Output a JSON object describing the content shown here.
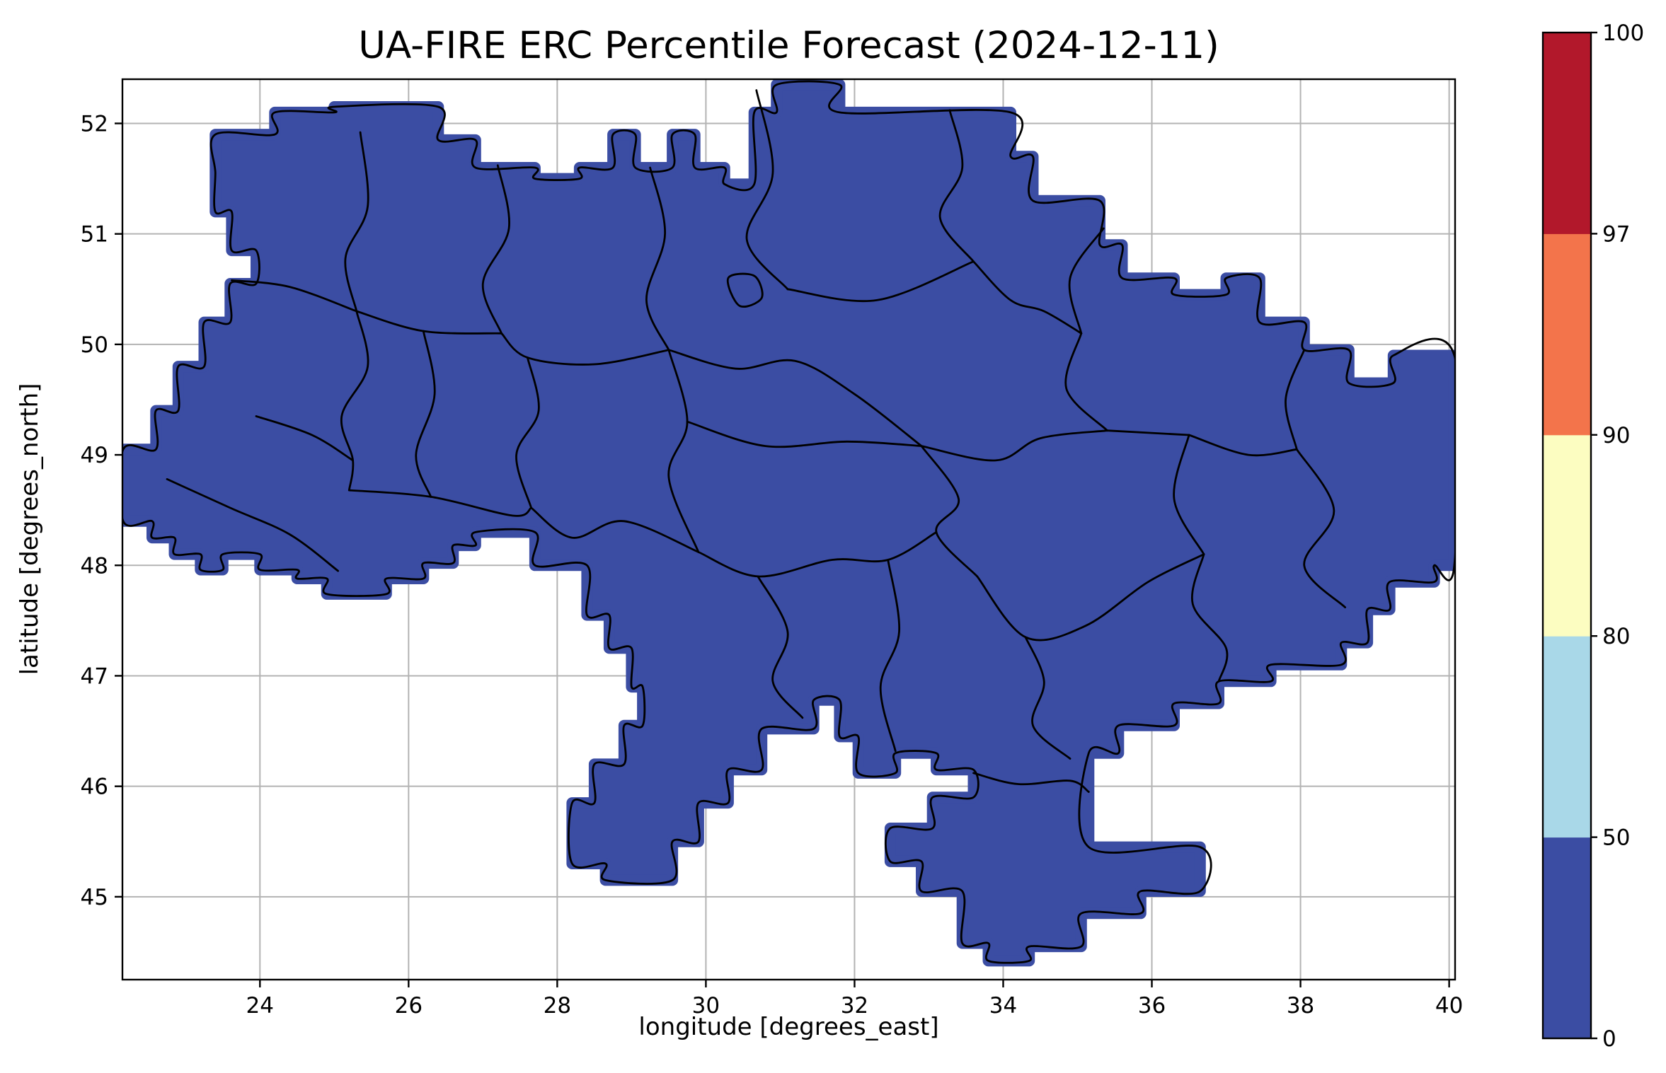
{
  "chart_data": {
    "type": "heatmap",
    "title": "UA-FIRE ERC Percentile Forecast (2024-12-11)",
    "xlabel": "longitude [degrees_east]",
    "ylabel": "latitude [degrees_north]",
    "region": "Ukraine",
    "xlim": [
      22.15,
      40.08
    ],
    "ylim": [
      44.25,
      52.4
    ],
    "xticks": [
      24,
      26,
      28,
      30,
      32,
      34,
      36,
      38,
      40
    ],
    "yticks": [
      45,
      46,
      47,
      48,
      49,
      50,
      51,
      52
    ],
    "grid": true,
    "grid_color": "#b3b3b3",
    "frame_color": "#000000",
    "boundary_color": "#000000",
    "fill_color": "#3B4DA3",
    "uniform_value_bin": [
      0,
      50
    ],
    "colorbar": {
      "levels": [
        0,
        50,
        80,
        90,
        97,
        100
      ],
      "labels": [
        "0",
        "50",
        "80",
        "90",
        "97",
        "100"
      ],
      "colors": [
        "#3B4DA3",
        "#A9D8E8",
        "#FCFDC1",
        "#F3744B",
        "#B2182B"
      ]
    },
    "mask_outline": [
      [
        23.4,
        51.55
      ],
      [
        23.4,
        51.9
      ],
      [
        24.2,
        51.9
      ],
      [
        24.2,
        52.1
      ],
      [
        25.0,
        52.1
      ],
      [
        25.0,
        52.15
      ],
      [
        26.4,
        52.15
      ],
      [
        26.4,
        51.85
      ],
      [
        26.9,
        51.85
      ],
      [
        26.9,
        51.6
      ],
      [
        27.7,
        51.6
      ],
      [
        27.7,
        51.5
      ],
      [
        28.3,
        51.5
      ],
      [
        28.3,
        51.6
      ],
      [
        28.75,
        51.6
      ],
      [
        28.75,
        51.9
      ],
      [
        29.05,
        51.9
      ],
      [
        29.05,
        51.6
      ],
      [
        29.55,
        51.6
      ],
      [
        29.55,
        51.9
      ],
      [
        29.85,
        51.9
      ],
      [
        29.85,
        51.6
      ],
      [
        30.25,
        51.6
      ],
      [
        30.25,
        51.45
      ],
      [
        30.65,
        51.45
      ],
      [
        30.65,
        52.1
      ],
      [
        30.95,
        52.1
      ],
      [
        30.95,
        52.35
      ],
      [
        31.8,
        52.35
      ],
      [
        31.8,
        52.1
      ],
      [
        34.1,
        52.1
      ],
      [
        34.1,
        51.7
      ],
      [
        34.4,
        51.7
      ],
      [
        34.4,
        51.3
      ],
      [
        35.3,
        51.3
      ],
      [
        35.3,
        50.9
      ],
      [
        35.6,
        50.9
      ],
      [
        35.6,
        50.6
      ],
      [
        36.3,
        50.6
      ],
      [
        36.3,
        50.45
      ],
      [
        37.0,
        50.45
      ],
      [
        37.0,
        50.6
      ],
      [
        37.45,
        50.6
      ],
      [
        37.45,
        50.2
      ],
      [
        38.05,
        50.2
      ],
      [
        38.05,
        49.95
      ],
      [
        38.65,
        49.95
      ],
      [
        38.65,
        49.65
      ],
      [
        39.25,
        49.65
      ],
      [
        39.25,
        49.9
      ],
      [
        40.07,
        49.9
      ],
      [
        40.07,
        48.0
      ],
      [
        39.8,
        48.0
      ],
      [
        39.8,
        47.85
      ],
      [
        39.2,
        47.85
      ],
      [
        39.2,
        47.6
      ],
      [
        38.9,
        47.6
      ],
      [
        38.9,
        47.3
      ],
      [
        38.55,
        47.3
      ],
      [
        38.55,
        47.1
      ],
      [
        37.6,
        47.1
      ],
      [
        37.6,
        46.95
      ],
      [
        36.9,
        46.95
      ],
      [
        36.9,
        46.75
      ],
      [
        36.3,
        46.75
      ],
      [
        36.3,
        46.55
      ],
      [
        35.55,
        46.55
      ],
      [
        35.55,
        46.3
      ],
      [
        35.15,
        46.3
      ],
      [
        35.15,
        45.45
      ],
      [
        36.65,
        45.45
      ],
      [
        36.65,
        45.05
      ],
      [
        35.85,
        45.05
      ],
      [
        35.85,
        44.85
      ],
      [
        35.05,
        44.85
      ],
      [
        35.05,
        44.55
      ],
      [
        34.35,
        44.55
      ],
      [
        34.35,
        44.42
      ],
      [
        33.8,
        44.42
      ],
      [
        33.8,
        44.58
      ],
      [
        33.45,
        44.58
      ],
      [
        33.45,
        45.05
      ],
      [
        32.9,
        45.05
      ],
      [
        32.9,
        45.32
      ],
      [
        32.48,
        45.32
      ],
      [
        32.48,
        45.62
      ],
      [
        33.05,
        45.62
      ],
      [
        33.05,
        45.9
      ],
      [
        33.6,
        45.9
      ],
      [
        33.6,
        46.15
      ],
      [
        33.1,
        46.15
      ],
      [
        33.1,
        46.3
      ],
      [
        32.55,
        46.3
      ],
      [
        32.55,
        46.12
      ],
      [
        32.05,
        46.12
      ],
      [
        32.05,
        46.45
      ],
      [
        31.8,
        46.45
      ],
      [
        31.8,
        46.78
      ],
      [
        31.45,
        46.78
      ],
      [
        31.45,
        46.52
      ],
      [
        30.75,
        46.52
      ],
      [
        30.75,
        46.15
      ],
      [
        30.3,
        46.15
      ],
      [
        30.3,
        45.85
      ],
      [
        29.9,
        45.85
      ],
      [
        29.9,
        45.5
      ],
      [
        29.55,
        45.5
      ],
      [
        29.55,
        45.15
      ],
      [
        28.65,
        45.15
      ],
      [
        28.65,
        45.3
      ],
      [
        28.2,
        45.3
      ],
      [
        28.2,
        45.85
      ],
      [
        28.5,
        45.85
      ],
      [
        28.5,
        46.2
      ],
      [
        28.9,
        46.2
      ],
      [
        28.9,
        46.55
      ],
      [
        29.15,
        46.55
      ],
      [
        29.15,
        46.9
      ],
      [
        29.0,
        46.9
      ],
      [
        29.0,
        47.25
      ],
      [
        28.7,
        47.25
      ],
      [
        28.7,
        47.55
      ],
      [
        28.4,
        47.55
      ],
      [
        28.4,
        48.0
      ],
      [
        27.7,
        48.0
      ],
      [
        27.7,
        48.3
      ],
      [
        26.9,
        48.3
      ],
      [
        26.9,
        48.18
      ],
      [
        26.6,
        48.18
      ],
      [
        26.6,
        48.02
      ],
      [
        26.2,
        48.02
      ],
      [
        26.2,
        47.88
      ],
      [
        25.7,
        47.88
      ],
      [
        25.7,
        47.74
      ],
      [
        24.9,
        47.74
      ],
      [
        24.9,
        47.88
      ],
      [
        24.5,
        47.88
      ],
      [
        24.5,
        47.96
      ],
      [
        24.0,
        47.96
      ],
      [
        24.0,
        48.1
      ],
      [
        23.5,
        48.1
      ],
      [
        23.5,
        47.96
      ],
      [
        23.2,
        47.96
      ],
      [
        23.2,
        48.1
      ],
      [
        22.85,
        48.1
      ],
      [
        22.85,
        48.25
      ],
      [
        22.55,
        48.25
      ],
      [
        22.55,
        48.4
      ],
      [
        22.16,
        48.4
      ],
      [
        22.16,
        49.05
      ],
      [
        22.6,
        49.05
      ],
      [
        22.6,
        49.4
      ],
      [
        22.9,
        49.4
      ],
      [
        22.9,
        49.8
      ],
      [
        23.25,
        49.8
      ],
      [
        23.25,
        50.2
      ],
      [
        23.6,
        50.2
      ],
      [
        23.6,
        50.55
      ],
      [
        23.95,
        50.55
      ],
      [
        23.95,
        50.85
      ],
      [
        23.62,
        50.85
      ],
      [
        23.62,
        51.2
      ],
      [
        23.4,
        51.2
      ]
    ],
    "admin_boundaries": [
      [
        [
          25.35,
          51.92
        ],
        [
          25.45,
          51.25
        ],
        [
          25.15,
          50.78
        ],
        [
          25.3,
          50.3
        ]
      ],
      [
        [
          23.62,
          50.58
        ],
        [
          24.4,
          50.52
        ],
        [
          25.3,
          50.3
        ]
      ],
      [
        [
          25.3,
          50.3
        ],
        [
          26.2,
          50.12
        ],
        [
          27.25,
          50.1
        ]
      ],
      [
        [
          27.2,
          51.62
        ],
        [
          27.35,
          51.05
        ],
        [
          27.0,
          50.55
        ],
        [
          27.25,
          50.1
        ]
      ],
      [
        [
          27.25,
          50.1
        ],
        [
          27.6,
          49.88
        ],
        [
          28.5,
          49.82
        ],
        [
          29.5,
          49.95
        ]
      ],
      [
        [
          29.25,
          51.6
        ],
        [
          29.45,
          51.0
        ],
        [
          29.2,
          50.4
        ],
        [
          29.5,
          49.95
        ]
      ],
      [
        [
          30.68,
          52.3
        ],
        [
          30.9,
          51.55
        ],
        [
          30.55,
          50.95
        ],
        [
          31.1,
          50.5
        ]
      ],
      [
        [
          33.28,
          52.12
        ],
        [
          33.45,
          51.6
        ],
        [
          33.15,
          51.15
        ],
        [
          33.6,
          50.75
        ]
      ],
      [
        [
          31.1,
          50.5
        ],
        [
          32.3,
          50.4
        ],
        [
          33.6,
          50.75
        ]
      ],
      [
        [
          33.6,
          50.75
        ],
        [
          34.1,
          50.4
        ],
        [
          34.55,
          50.3
        ],
        [
          35.05,
          50.1
        ]
      ],
      [
        [
          35.35,
          51.05
        ],
        [
          34.9,
          50.6
        ],
        [
          35.05,
          50.1
        ]
      ],
      [
        [
          35.05,
          50.1
        ],
        [
          34.85,
          49.6
        ],
        [
          35.4,
          49.22
        ]
      ],
      [
        [
          35.4,
          49.22
        ],
        [
          36.5,
          49.18
        ]
      ],
      [
        [
          36.5,
          49.18
        ],
        [
          37.3,
          49.0
        ],
        [
          37.95,
          49.05
        ]
      ],
      [
        [
          38.05,
          49.95
        ],
        [
          37.8,
          49.5
        ],
        [
          37.95,
          49.05
        ]
      ],
      [
        [
          37.95,
          49.05
        ],
        [
          38.45,
          48.5
        ],
        [
          38.05,
          48.0
        ],
        [
          38.6,
          47.62
        ]
      ],
      [
        [
          36.5,
          49.18
        ],
        [
          36.3,
          48.6
        ],
        [
          36.7,
          48.1
        ]
      ],
      [
        [
          36.7,
          48.1
        ],
        [
          36.55,
          47.65
        ],
        [
          37.0,
          47.25
        ],
        [
          36.9,
          46.95
        ]
      ],
      [
        [
          29.5,
          49.95
        ],
        [
          30.4,
          49.78
        ],
        [
          31.2,
          49.85
        ],
        [
          32.0,
          49.55
        ],
        [
          32.9,
          49.08
        ]
      ],
      [
        [
          32.9,
          49.08
        ],
        [
          33.9,
          48.95
        ],
        [
          34.5,
          49.15
        ],
        [
          35.4,
          49.22
        ]
      ],
      [
        [
          29.75,
          49.3
        ],
        [
          30.8,
          49.08
        ],
        [
          31.9,
          49.12
        ],
        [
          32.9,
          49.08
        ]
      ],
      [
        [
          29.5,
          49.95
        ],
        [
          29.75,
          49.3
        ],
        [
          29.5,
          48.8
        ],
        [
          29.9,
          48.12
        ]
      ],
      [
        [
          27.6,
          49.88
        ],
        [
          27.75,
          49.4
        ],
        [
          27.45,
          49.0
        ],
        [
          27.65,
          48.52
        ]
      ],
      [
        [
          26.2,
          50.12
        ],
        [
          26.35,
          49.55
        ],
        [
          26.1,
          49.0
        ],
        [
          26.3,
          48.62
        ]
      ],
      [
        [
          25.3,
          50.3
        ],
        [
          25.45,
          49.8
        ],
        [
          25.1,
          49.35
        ],
        [
          25.25,
          48.95
        ],
        [
          25.2,
          48.68
        ]
      ],
      [
        [
          23.95,
          49.35
        ],
        [
          24.7,
          49.18
        ],
        [
          25.25,
          48.95
        ]
      ],
      [
        [
          22.75,
          48.78
        ],
        [
          23.6,
          48.52
        ],
        [
          24.4,
          48.28
        ],
        [
          25.05,
          47.95
        ]
      ],
      [
        [
          25.2,
          48.68
        ],
        [
          26.3,
          48.62
        ],
        [
          27.4,
          48.45
        ],
        [
          27.65,
          48.52
        ]
      ],
      [
        [
          27.65,
          48.52
        ],
        [
          28.2,
          48.25
        ],
        [
          28.9,
          48.4
        ],
        [
          29.9,
          48.12
        ]
      ],
      [
        [
          29.9,
          48.12
        ],
        [
          30.7,
          47.9
        ],
        [
          31.7,
          48.05
        ],
        [
          32.45,
          48.05
        ],
        [
          33.1,
          48.3
        ]
      ],
      [
        [
          32.9,
          49.08
        ],
        [
          33.4,
          48.6
        ],
        [
          33.1,
          48.3
        ],
        [
          33.65,
          47.9
        ]
      ],
      [
        [
          33.65,
          47.9
        ],
        [
          34.3,
          47.35
        ],
        [
          35.1,
          47.45
        ],
        [
          35.95,
          47.85
        ],
        [
          36.7,
          48.1
        ]
      ],
      [
        [
          34.3,
          47.35
        ],
        [
          34.55,
          46.95
        ],
        [
          34.4,
          46.55
        ],
        [
          34.9,
          46.25
        ]
      ],
      [
        [
          32.45,
          48.05
        ],
        [
          32.6,
          47.4
        ],
        [
          32.35,
          46.9
        ],
        [
          32.55,
          46.32
        ]
      ],
      [
        [
          30.7,
          47.9
        ],
        [
          31.1,
          47.4
        ],
        [
          30.9,
          46.95
        ],
        [
          31.3,
          46.62
        ]
      ],
      [
        [
          33.6,
          46.12
        ],
        [
          34.2,
          46.02
        ],
        [
          34.9,
          46.05
        ],
        [
          35.15,
          45.95
        ]
      ],
      [
        [
          30.3,
          50.6
        ],
        [
          30.65,
          50.62
        ],
        [
          30.75,
          50.42
        ],
        [
          30.45,
          50.35
        ],
        [
          30.3,
          50.6
        ]
      ]
    ]
  }
}
